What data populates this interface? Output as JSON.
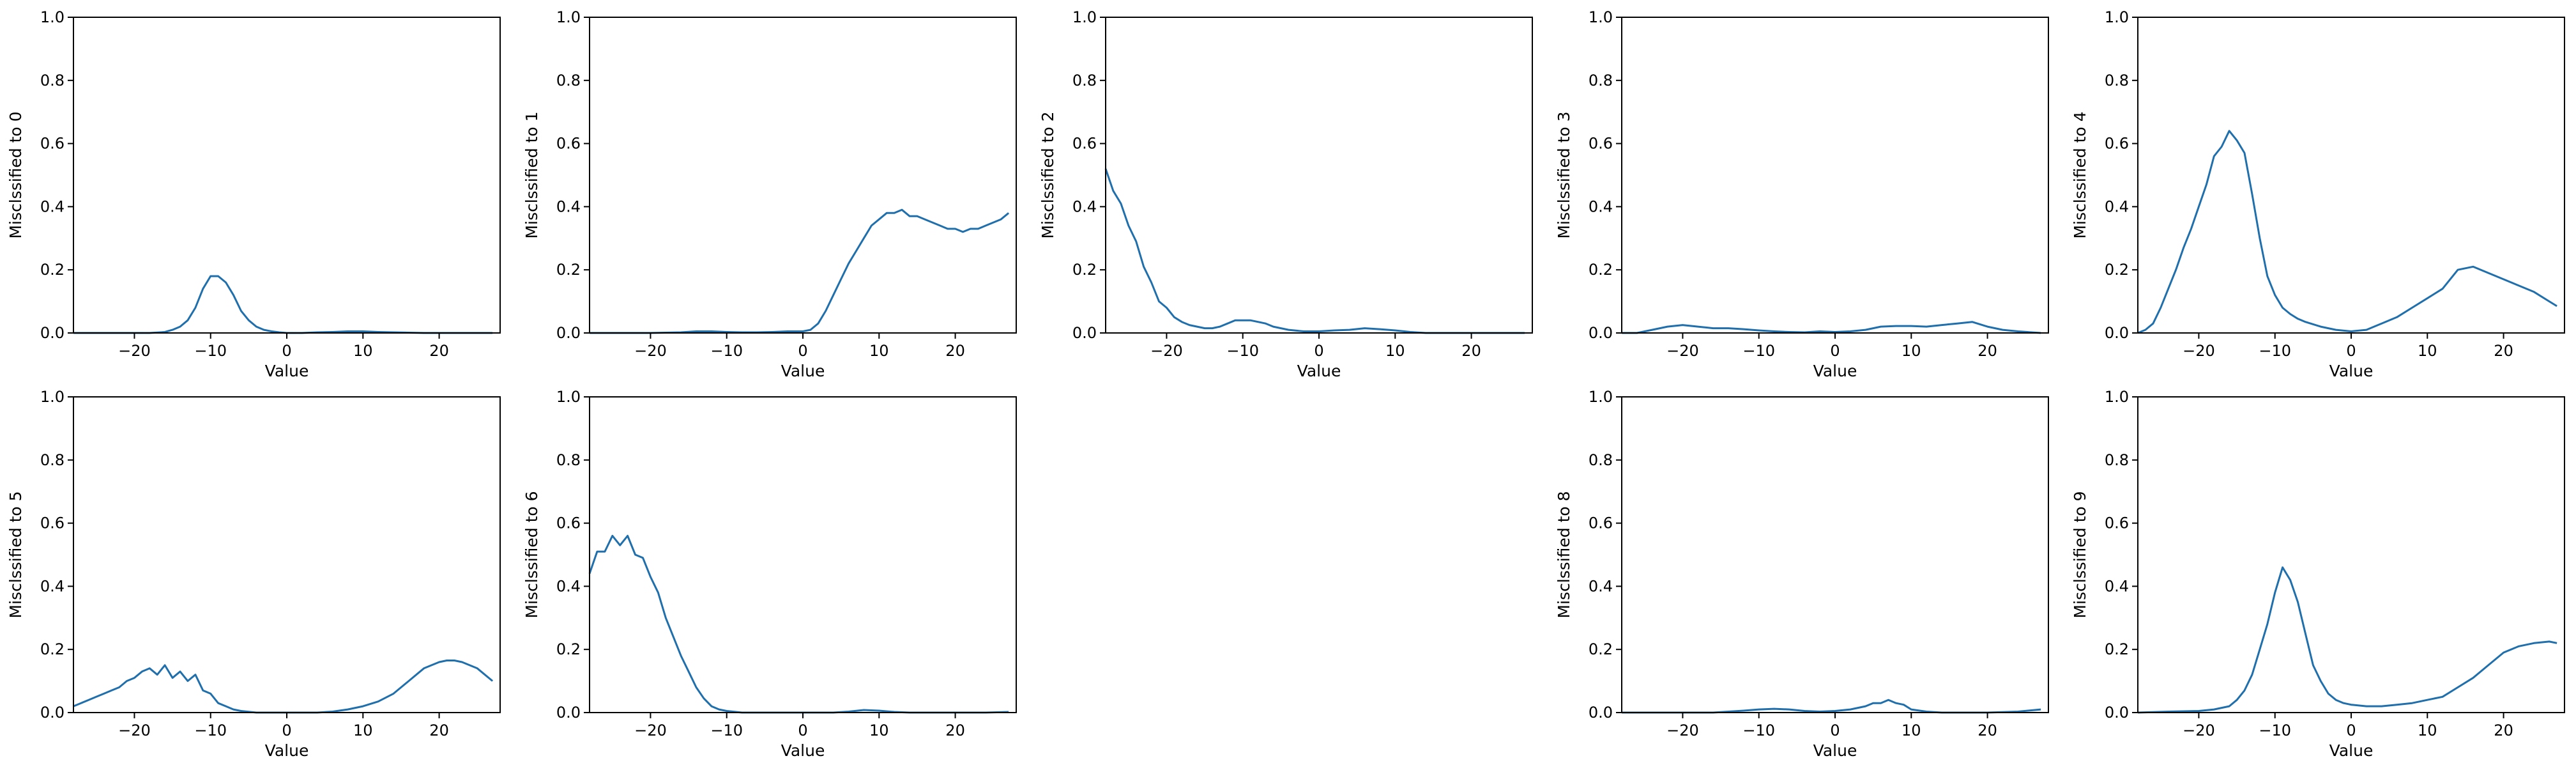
{
  "chart_data": [
    {
      "type": "line",
      "xlabel": "Value",
      "ylabel": "Misclssified to 0",
      "xlim": [
        -28,
        28
      ],
      "ylim": [
        0,
        1
      ],
      "xticks": [
        -20,
        -10,
        0,
        10,
        20
      ],
      "yticks": [
        0.0,
        0.2,
        0.4,
        0.6,
        0.8,
        1.0
      ],
      "line_color": "#1f6fad",
      "x": [
        -28,
        -26,
        -24,
        -22,
        -20,
        -18,
        -16,
        -15,
        -14,
        -13,
        -12,
        -11,
        -10,
        -9,
        -8,
        -7,
        -6,
        -5,
        -4,
        -3,
        -2,
        -1,
        0,
        2,
        4,
        6,
        8,
        10,
        12,
        14,
        16,
        18,
        20,
        22,
        24,
        26,
        27
      ],
      "y": [
        0,
        0,
        0,
        0,
        0,
        0,
        0.003,
        0.01,
        0.02,
        0.04,
        0.08,
        0.14,
        0.18,
        0.18,
        0.16,
        0.12,
        0.07,
        0.04,
        0.02,
        0.01,
        0.005,
        0.002,
        0,
        0,
        0.002,
        0.003,
        0.005,
        0.005,
        0.003,
        0.002,
        0.001,
        0,
        0,
        0,
        0,
        0,
        0
      ]
    },
    {
      "type": "line",
      "xlabel": "Value",
      "ylabel": "Misclssified to 1",
      "xlim": [
        -28,
        28
      ],
      "ylim": [
        0,
        1
      ],
      "xticks": [
        -20,
        -10,
        0,
        10,
        20
      ],
      "yticks": [
        0.0,
        0.2,
        0.4,
        0.6,
        0.8,
        1.0
      ],
      "line_color": "#1f6fad",
      "x": [
        -28,
        -24,
        -20,
        -16,
        -14,
        -12,
        -10,
        -8,
        -6,
        -4,
        -2,
        0,
        1,
        2,
        3,
        4,
        5,
        6,
        7,
        8,
        9,
        10,
        11,
        12,
        13,
        14,
        15,
        16,
        17,
        18,
        19,
        20,
        21,
        22,
        23,
        24,
        25,
        26,
        27
      ],
      "y": [
        0,
        0,
        0,
        0.002,
        0.005,
        0.005,
        0.003,
        0.002,
        0.002,
        0.003,
        0.005,
        0.005,
        0.01,
        0.03,
        0.07,
        0.12,
        0.17,
        0.22,
        0.26,
        0.3,
        0.34,
        0.36,
        0.38,
        0.38,
        0.39,
        0.37,
        0.37,
        0.36,
        0.35,
        0.34,
        0.33,
        0.33,
        0.32,
        0.33,
        0.33,
        0.34,
        0.35,
        0.36,
        0.38
      ]
    },
    {
      "type": "line",
      "xlabel": "Value",
      "ylabel": "Misclssified to 2",
      "xlim": [
        -28,
        28
      ],
      "ylim": [
        0,
        1
      ],
      "xticks": [
        -20,
        -10,
        0,
        10,
        20
      ],
      "yticks": [
        0.0,
        0.2,
        0.4,
        0.6,
        0.8,
        1.0
      ],
      "line_color": "#1f6fad",
      "x": [
        -28,
        -27,
        -26,
        -25,
        -24,
        -23,
        -22,
        -21,
        -20,
        -19,
        -18,
        -17,
        -16,
        -15,
        -14,
        -13,
        -12,
        -11,
        -10,
        -9,
        -8,
        -7,
        -6,
        -5,
        -4,
        -2,
        0,
        2,
        4,
        6,
        8,
        10,
        12,
        14,
        16,
        20,
        24,
        27
      ],
      "y": [
        0.52,
        0.45,
        0.41,
        0.34,
        0.29,
        0.21,
        0.16,
        0.1,
        0.08,
        0.05,
        0.035,
        0.025,
        0.02,
        0.015,
        0.015,
        0.02,
        0.03,
        0.04,
        0.04,
        0.04,
        0.035,
        0.03,
        0.02,
        0.015,
        0.01,
        0.005,
        0.005,
        0.008,
        0.01,
        0.015,
        0.012,
        0.008,
        0.003,
        0,
        0,
        0,
        0,
        0
      ]
    },
    {
      "type": "line",
      "xlabel": "Value",
      "ylabel": "Misclssified to 3",
      "xlim": [
        -28,
        28
      ],
      "ylim": [
        0,
        1
      ],
      "xticks": [
        -20,
        -10,
        0,
        10,
        20
      ],
      "yticks": [
        0.0,
        0.2,
        0.4,
        0.6,
        0.8,
        1.0
      ],
      "line_color": "#1f6fad",
      "x": [
        -28,
        -26,
        -24,
        -22,
        -20,
        -18,
        -16,
        -14,
        -12,
        -10,
        -8,
        -6,
        -4,
        -2,
        0,
        2,
        4,
        6,
        8,
        10,
        12,
        14,
        16,
        18,
        20,
        22,
        24,
        27
      ],
      "y": [
        0,
        0,
        0.01,
        0.02,
        0.025,
        0.02,
        0.015,
        0.015,
        0.012,
        0.008,
        0.005,
        0.003,
        0.002,
        0.005,
        0.003,
        0.005,
        0.01,
        0.02,
        0.022,
        0.022,
        0.02,
        0.025,
        0.03,
        0.035,
        0.02,
        0.01,
        0.005,
        0
      ]
    },
    {
      "type": "line",
      "xlabel": "Value",
      "ylabel": "Misclssified to 4",
      "xlim": [
        -28,
        28
      ],
      "ylim": [
        0,
        1
      ],
      "xticks": [
        -20,
        -10,
        0,
        10,
        20
      ],
      "yticks": [
        0.0,
        0.2,
        0.4,
        0.6,
        0.8,
        1.0
      ],
      "line_color": "#1f6fad",
      "x": [
        -28,
        -27,
        -26,
        -25,
        -24,
        -23,
        -22,
        -21,
        -20,
        -19,
        -18,
        -17,
        -16,
        -15,
        -14,
        -13,
        -12,
        -11,
        -10,
        -9,
        -8,
        -7,
        -6,
        -4,
        -2,
        0,
        2,
        4,
        6,
        8,
        10,
        12,
        14,
        16,
        18,
        20,
        22,
        24,
        26,
        27
      ],
      "y": [
        0,
        0.01,
        0.03,
        0.08,
        0.14,
        0.2,
        0.27,
        0.33,
        0.4,
        0.47,
        0.56,
        0.59,
        0.64,
        0.61,
        0.57,
        0.44,
        0.3,
        0.18,
        0.12,
        0.08,
        0.06,
        0.045,
        0.035,
        0.02,
        0.01,
        0.005,
        0.01,
        0.03,
        0.05,
        0.08,
        0.11,
        0.14,
        0.2,
        0.21,
        0.19,
        0.17,
        0.15,
        0.13,
        0.1,
        0.085
      ]
    },
    {
      "type": "line",
      "xlabel": "Value",
      "ylabel": "Misclssified to 5",
      "xlim": [
        -28,
        28
      ],
      "ylim": [
        0,
        1
      ],
      "xticks": [
        -20,
        -10,
        0,
        10,
        20
      ],
      "yticks": [
        0.0,
        0.2,
        0.4,
        0.6,
        0.8,
        1.0
      ],
      "line_color": "#1f6fad",
      "x": [
        -28,
        -27,
        -26,
        -25,
        -24,
        -23,
        -22,
        -21,
        -20,
        -19,
        -18,
        -17,
        -16,
        -15,
        -14,
        -13,
        -12,
        -11,
        -10,
        -9,
        -8,
        -7,
        -6,
        -4,
        -2,
        0,
        2,
        4,
        6,
        8,
        10,
        12,
        14,
        16,
        17,
        18,
        19,
        20,
        21,
        22,
        23,
        24,
        25,
        26,
        27
      ],
      "y": [
        0.02,
        0.03,
        0.04,
        0.05,
        0.06,
        0.07,
        0.08,
        0.1,
        0.11,
        0.13,
        0.14,
        0.12,
        0.15,
        0.11,
        0.13,
        0.1,
        0.12,
        0.07,
        0.06,
        0.03,
        0.02,
        0.01,
        0.005,
        0,
        0,
        0,
        0,
        0,
        0.003,
        0.01,
        0.02,
        0.035,
        0.06,
        0.1,
        0.12,
        0.14,
        0.15,
        0.16,
        0.165,
        0.165,
        0.16,
        0.15,
        0.14,
        0.12,
        0.1
      ]
    },
    {
      "type": "line",
      "xlabel": "Value",
      "ylabel": "Misclssified to 6",
      "xlim": [
        -28,
        28
      ],
      "ylim": [
        0,
        1
      ],
      "xticks": [
        -20,
        -10,
        0,
        10,
        20
      ],
      "yticks": [
        0.0,
        0.2,
        0.4,
        0.6,
        0.8,
        1.0
      ],
      "line_color": "#1f6fad",
      "x": [
        -28,
        -27,
        -26,
        -25,
        -24,
        -23,
        -22,
        -21,
        -20,
        -19,
        -18,
        -17,
        -16,
        -15,
        -14,
        -13,
        -12,
        -11,
        -10,
        -8,
        -6,
        -4,
        -2,
        0,
        2,
        4,
        6,
        8,
        10,
        12,
        14,
        16,
        20,
        24,
        27
      ],
      "y": [
        0.44,
        0.51,
        0.51,
        0.56,
        0.53,
        0.56,
        0.5,
        0.49,
        0.43,
        0.38,
        0.3,
        0.24,
        0.18,
        0.13,
        0.08,
        0.045,
        0.02,
        0.01,
        0.005,
        0,
        0,
        0,
        0,
        0,
        0,
        0,
        0.003,
        0.008,
        0.006,
        0.002,
        0,
        0,
        0,
        0,
        0.002
      ]
    },
    {
      "type": "line",
      "xlabel": "Value",
      "ylabel": "Misclssified to 8",
      "xlim": [
        -28,
        28
      ],
      "ylim": [
        0,
        1
      ],
      "xticks": [
        -20,
        -10,
        0,
        10,
        20
      ],
      "yticks": [
        0.0,
        0.2,
        0.4,
        0.6,
        0.8,
        1.0
      ],
      "line_color": "#1f6fad",
      "x": [
        -28,
        -24,
        -20,
        -16,
        -14,
        -12,
        -10,
        -8,
        -6,
        -4,
        -2,
        0,
        2,
        4,
        5,
        6,
        7,
        8,
        9,
        10,
        12,
        14,
        16,
        20,
        24,
        27
      ],
      "y": [
        0,
        0,
        0,
        0,
        0.003,
        0.006,
        0.01,
        0.012,
        0.01,
        0.005,
        0.003,
        0.005,
        0.01,
        0.02,
        0.03,
        0.03,
        0.04,
        0.03,
        0.025,
        0.01,
        0.003,
        0,
        0,
        0,
        0.003,
        0.01
      ]
    },
    {
      "type": "line",
      "xlabel": "Value",
      "ylabel": "Misclssified to 9",
      "xlim": [
        -28,
        28
      ],
      "ylim": [
        0,
        1
      ],
      "xticks": [
        -20,
        -10,
        0,
        10,
        20
      ],
      "yticks": [
        0.0,
        0.2,
        0.4,
        0.6,
        0.8,
        1.0
      ],
      "line_color": "#1f6fad",
      "x": [
        -28,
        -24,
        -20,
        -18,
        -16,
        -15,
        -14,
        -13,
        -12,
        -11,
        -10,
        -9,
        -8,
        -7,
        -6,
        -5,
        -4,
        -3,
        -2,
        -1,
        0,
        2,
        4,
        6,
        8,
        10,
        12,
        14,
        16,
        18,
        20,
        22,
        24,
        26,
        27
      ],
      "y": [
        0,
        0.003,
        0.005,
        0.01,
        0.02,
        0.04,
        0.07,
        0.12,
        0.2,
        0.28,
        0.38,
        0.46,
        0.42,
        0.35,
        0.25,
        0.15,
        0.1,
        0.06,
        0.04,
        0.03,
        0.025,
        0.02,
        0.02,
        0.025,
        0.03,
        0.04,
        0.05,
        0.08,
        0.11,
        0.15,
        0.19,
        0.21,
        0.22,
        0.225,
        0.22
      ]
    }
  ]
}
